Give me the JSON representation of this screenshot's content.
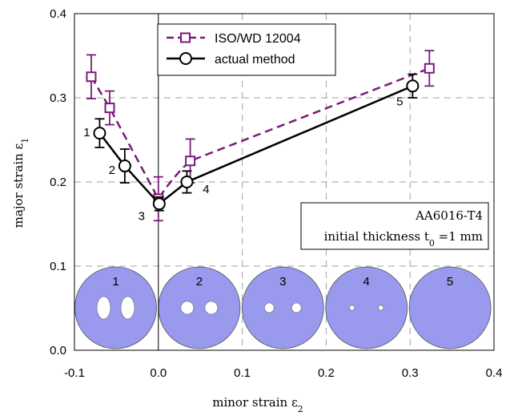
{
  "chart_data": {
    "type": "line",
    "xlabel": "minor strain ε",
    "xlabel_sub": "2",
    "ylabel": "major strain ε",
    "ylabel_sub": "1",
    "xlim": [
      -0.1,
      0.4
    ],
    "ylim": [
      0.0,
      0.4
    ],
    "x_ticks": [
      "-0.1",
      "0.0",
      "0.1",
      "0.2",
      "0.3",
      "0.4"
    ],
    "y_ticks": [
      "0.0",
      "0.1",
      "0.2",
      "0.3",
      "0.4"
    ],
    "grid": true,
    "series": [
      {
        "name": "ISO/WD 12004",
        "color": "#7b1a7b",
        "line_style": "dashed",
        "marker": "square",
        "x": [
          -0.08,
          -0.058,
          0.0,
          0.038,
          0.323
        ],
        "y": [
          0.325,
          0.288,
          0.18,
          0.225,
          0.335
        ],
        "err": [
          0.026,
          0.02,
          0.026,
          0.026,
          0.021
        ]
      },
      {
        "name": "actual method",
        "color": "#000000",
        "line_style": "solid",
        "marker": "circle",
        "x": [
          -0.07,
          -0.04,
          0.001,
          0.034,
          0.303
        ],
        "y": [
          0.258,
          0.219,
          0.174,
          0.2,
          0.314
        ],
        "err": [
          0.017,
          0.02,
          0.008,
          0.013,
          0.014
        ]
      }
    ],
    "point_labels": [
      "1",
      "2",
      "3",
      "4",
      "5"
    ],
    "annotation_lines": [
      "AA6016-T4",
      "initial thickness t",
      "0",
      " =1 mm"
    ],
    "specimens": [
      {
        "label": "1",
        "hole": "ellipse"
      },
      {
        "label": "2",
        "hole": "large-circle"
      },
      {
        "label": "3",
        "hole": "medium-circle"
      },
      {
        "label": "4",
        "hole": "small-circle"
      },
      {
        "label": "5",
        "hole": "none"
      }
    ],
    "specimen_color": "#9999ee"
  }
}
